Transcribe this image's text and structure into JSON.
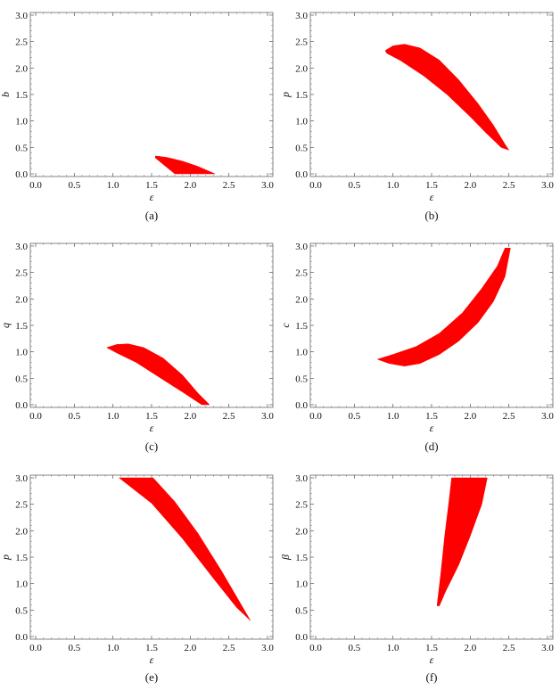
{
  "region_color": "#ff0000",
  "chart_data": [
    {
      "type": "area",
      "caption": "(a)",
      "xlabel": "ε",
      "ylabel": "b",
      "xlim": [
        0,
        3
      ],
      "ylim": [
        -0.05,
        3.05
      ],
      "xticks": [
        "0.0",
        "0.5",
        "1.0",
        "1.5",
        "2.0",
        "2.5",
        "3.0"
      ],
      "yticks": [
        "0.0",
        "0.5",
        "1.0",
        "1.5",
        "2.0",
        "2.5",
        "3.0"
      ],
      "grid": false,
      "region": [
        [
          1.55,
          0.34
        ],
        [
          1.7,
          0.31
        ],
        [
          1.9,
          0.24
        ],
        [
          2.1,
          0.14
        ],
        [
          2.32,
          0.0
        ],
        [
          1.8,
          0.0
        ],
        [
          1.55,
          0.3
        ]
      ]
    },
    {
      "type": "area",
      "caption": "(b)",
      "xlabel": "ε",
      "ylabel": "p",
      "xlim": [
        0,
        3
      ],
      "ylim": [
        -0.05,
        3.05
      ],
      "xticks": [
        "0.0",
        "0.5",
        "1.0",
        "1.5",
        "2.0",
        "2.5",
        "3.0"
      ],
      "yticks": [
        "0.0",
        "0.5",
        "1.0",
        "1.5",
        "2.0",
        "2.5",
        "3.0"
      ],
      "grid": false,
      "region": [
        [
          0.9,
          2.33
        ],
        [
          1.0,
          2.42
        ],
        [
          1.15,
          2.45
        ],
        [
          1.35,
          2.38
        ],
        [
          1.6,
          2.15
        ],
        [
          1.85,
          1.78
        ],
        [
          2.1,
          1.33
        ],
        [
          2.3,
          0.92
        ],
        [
          2.45,
          0.56
        ],
        [
          2.5,
          0.45
        ],
        [
          2.4,
          0.5
        ],
        [
          2.2,
          0.78
        ],
        [
          2.0,
          1.08
        ],
        [
          1.7,
          1.5
        ],
        [
          1.4,
          1.85
        ],
        [
          1.1,
          2.14
        ],
        [
          0.92,
          2.28
        ]
      ]
    },
    {
      "type": "area",
      "caption": "(c)",
      "xlabel": "ε",
      "ylabel": "q",
      "xlim": [
        0,
        3
      ],
      "ylim": [
        -0.05,
        3.05
      ],
      "xticks": [
        "0.0",
        "0.5",
        "1.0",
        "1.5",
        "2.0",
        "2.5",
        "3.0"
      ],
      "yticks": [
        "0.0",
        "0.5",
        "1.0",
        "1.5",
        "2.0",
        "2.5",
        "3.0"
      ],
      "grid": false,
      "region": [
        [
          0.92,
          1.08
        ],
        [
          1.05,
          1.14
        ],
        [
          1.2,
          1.15
        ],
        [
          1.4,
          1.08
        ],
        [
          1.65,
          0.88
        ],
        [
          1.9,
          0.56
        ],
        [
          2.1,
          0.22
        ],
        [
          2.25,
          0.0
        ],
        [
          2.15,
          0.0
        ],
        [
          1.9,
          0.24
        ],
        [
          1.6,
          0.52
        ],
        [
          1.3,
          0.8
        ],
        [
          1.05,
          0.98
        ]
      ]
    },
    {
      "type": "area",
      "caption": "(d)",
      "xlabel": "ε",
      "ylabel": "c",
      "xlim": [
        0,
        3
      ],
      "ylim": [
        -0.05,
        3.05
      ],
      "xticks": [
        "0.0",
        "0.5",
        "1.0",
        "1.5",
        "2.0",
        "2.5",
        "3.0"
      ],
      "yticks": [
        "0.0",
        "0.5",
        "1.0",
        "1.5",
        "2.0",
        "2.5",
        "3.0"
      ],
      "grid": false,
      "region": [
        [
          0.8,
          0.86
        ],
        [
          1.0,
          0.95
        ],
        [
          1.3,
          1.1
        ],
        [
          1.6,
          1.35
        ],
        [
          1.9,
          1.74
        ],
        [
          2.15,
          2.2
        ],
        [
          2.35,
          2.62
        ],
        [
          2.45,
          2.96
        ],
        [
          2.52,
          2.96
        ],
        [
          2.45,
          2.42
        ],
        [
          2.3,
          1.95
        ],
        [
          2.1,
          1.55
        ],
        [
          1.85,
          1.2
        ],
        [
          1.6,
          0.95
        ],
        [
          1.35,
          0.78
        ],
        [
          1.15,
          0.73
        ],
        [
          0.95,
          0.78
        ],
        [
          0.8,
          0.86
        ]
      ]
    },
    {
      "type": "area",
      "caption": "(e)",
      "xlabel": "ε",
      "ylabel": "p",
      "xlim": [
        0,
        3
      ],
      "ylim": [
        -0.05,
        3.05
      ],
      "xticks": [
        "0.0",
        "0.5",
        "1.0",
        "1.5",
        "2.0",
        "2.5",
        "3.0"
      ],
      "yticks": [
        "0.0",
        "0.5",
        "1.0",
        "1.5",
        "2.0",
        "2.5",
        "3.0"
      ],
      "grid": false,
      "region": [
        [
          1.08,
          3.0
        ],
        [
          1.52,
          3.0
        ],
        [
          1.8,
          2.55
        ],
        [
          2.1,
          1.95
        ],
        [
          2.4,
          1.25
        ],
        [
          2.62,
          0.7
        ],
        [
          2.78,
          0.3
        ],
        [
          2.6,
          0.55
        ],
        [
          2.3,
          1.1
        ],
        [
          1.9,
          1.85
        ],
        [
          1.5,
          2.52
        ],
        [
          1.08,
          3.0
        ]
      ]
    },
    {
      "type": "area",
      "caption": "(f)",
      "xlabel": "ε",
      "ylabel": "β",
      "xlim": [
        0,
        3
      ],
      "ylim": [
        -0.05,
        3.05
      ],
      "xticks": [
        "0.0",
        "0.5",
        "1.0",
        "1.5",
        "2.0",
        "2.5",
        "3.0"
      ],
      "yticks": [
        "0.0",
        "0.5",
        "1.0",
        "1.5",
        "2.0",
        "2.5",
        "3.0"
      ],
      "grid": false,
      "region": [
        [
          1.57,
          0.58
        ],
        [
          1.62,
          1.2
        ],
        [
          1.67,
          1.9
        ],
        [
          1.72,
          2.5
        ],
        [
          1.76,
          3.0
        ],
        [
          2.22,
          3.0
        ],
        [
          2.15,
          2.5
        ],
        [
          2.0,
          1.9
        ],
        [
          1.85,
          1.35
        ],
        [
          1.68,
          0.85
        ],
        [
          1.6,
          0.58
        ]
      ]
    }
  ]
}
